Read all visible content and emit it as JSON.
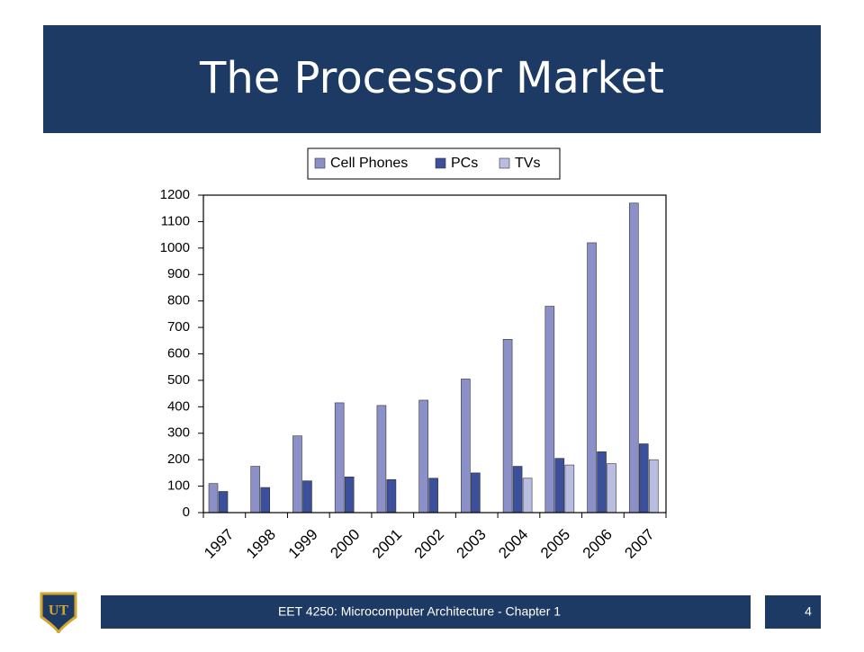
{
  "slide": {
    "title": "The Processor Market",
    "footer": "EET 4250: Microcomputer Architecture - Chapter 1",
    "page": "4",
    "logo": "UT"
  },
  "chart_data": {
    "type": "bar",
    "categories": [
      "1997",
      "1998",
      "1999",
      "2000",
      "2001",
      "2002",
      "2003",
      "2004",
      "2005",
      "2006",
      "2007"
    ],
    "series": [
      {
        "name": "Cell Phones",
        "color": "#8c90c8",
        "values": [
          110,
          175,
          290,
          415,
          405,
          425,
          505,
          655,
          780,
          1020,
          1170
        ]
      },
      {
        "name": "PCs",
        "color": "#3b4f9b",
        "values": [
          80,
          95,
          120,
          135,
          125,
          130,
          150,
          175,
          205,
          230,
          260
        ]
      },
      {
        "name": "TVs",
        "color": "#b9bde2",
        "values": [
          null,
          null,
          null,
          null,
          null,
          null,
          null,
          130,
          180,
          185,
          200
        ]
      }
    ],
    "ylim": [
      0,
      1200
    ],
    "yticks": [
      0,
      100,
      200,
      300,
      400,
      500,
      600,
      700,
      800,
      900,
      1000,
      1100,
      1200
    ],
    "grid": false,
    "legend": "top"
  }
}
